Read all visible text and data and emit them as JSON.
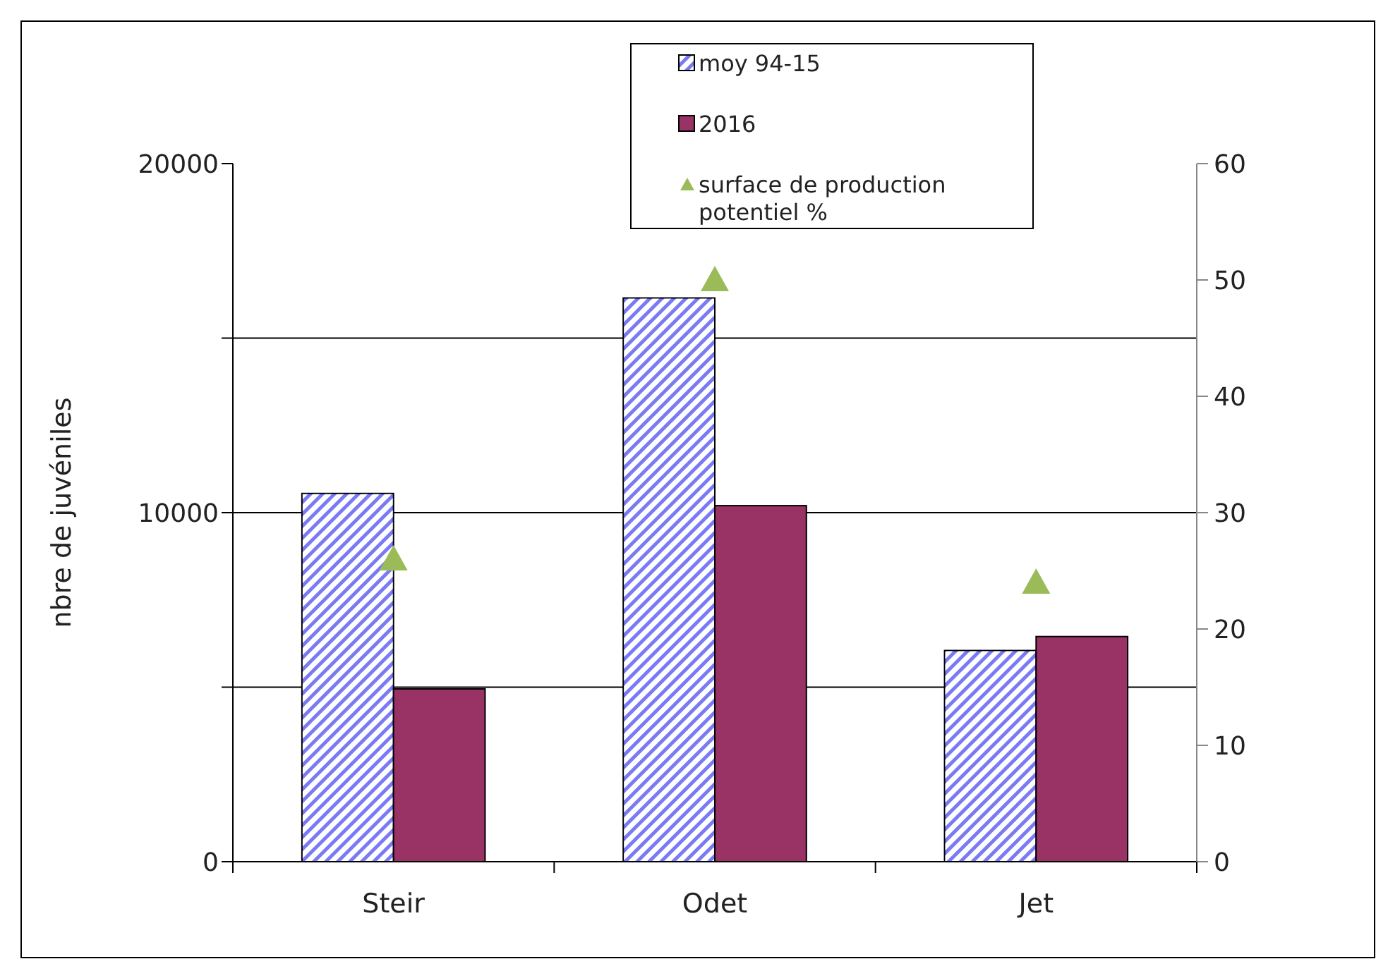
{
  "chart_data": {
    "type": "bar",
    "ylabel": "nbre de juvéniles",
    "categories": [
      "Steir",
      "Odet",
      "Jet"
    ],
    "series": [
      {
        "name": "moy 94-15",
        "color": "#7a7af5",
        "values": [
          10550,
          16150,
          6050
        ]
      },
      {
        "name": "2016",
        "color": "#993366",
        "values": [
          4950,
          10200,
          6450
        ]
      },
      {
        "name": "surface de production potentiel %",
        "type": "scatter",
        "marker": "triangle",
        "axis": "y2",
        "color": "#9bbb59",
        "x": [
          "Steir",
          "Odet",
          "Jet"
        ],
        "values": [
          26,
          50,
          24
        ]
      }
    ],
    "ylim": [
      0,
      20000
    ],
    "yticks": [
      0,
      {
        "value": 5000,
        "label": null
      },
      10000,
      {
        "value": 15000,
        "label": null
      },
      20000
    ],
    "y2lim": [
      0,
      60
    ],
    "y2ticks": [
      0,
      10,
      20,
      30,
      40,
      50,
      60
    ],
    "grid": "y",
    "legend": "top"
  }
}
